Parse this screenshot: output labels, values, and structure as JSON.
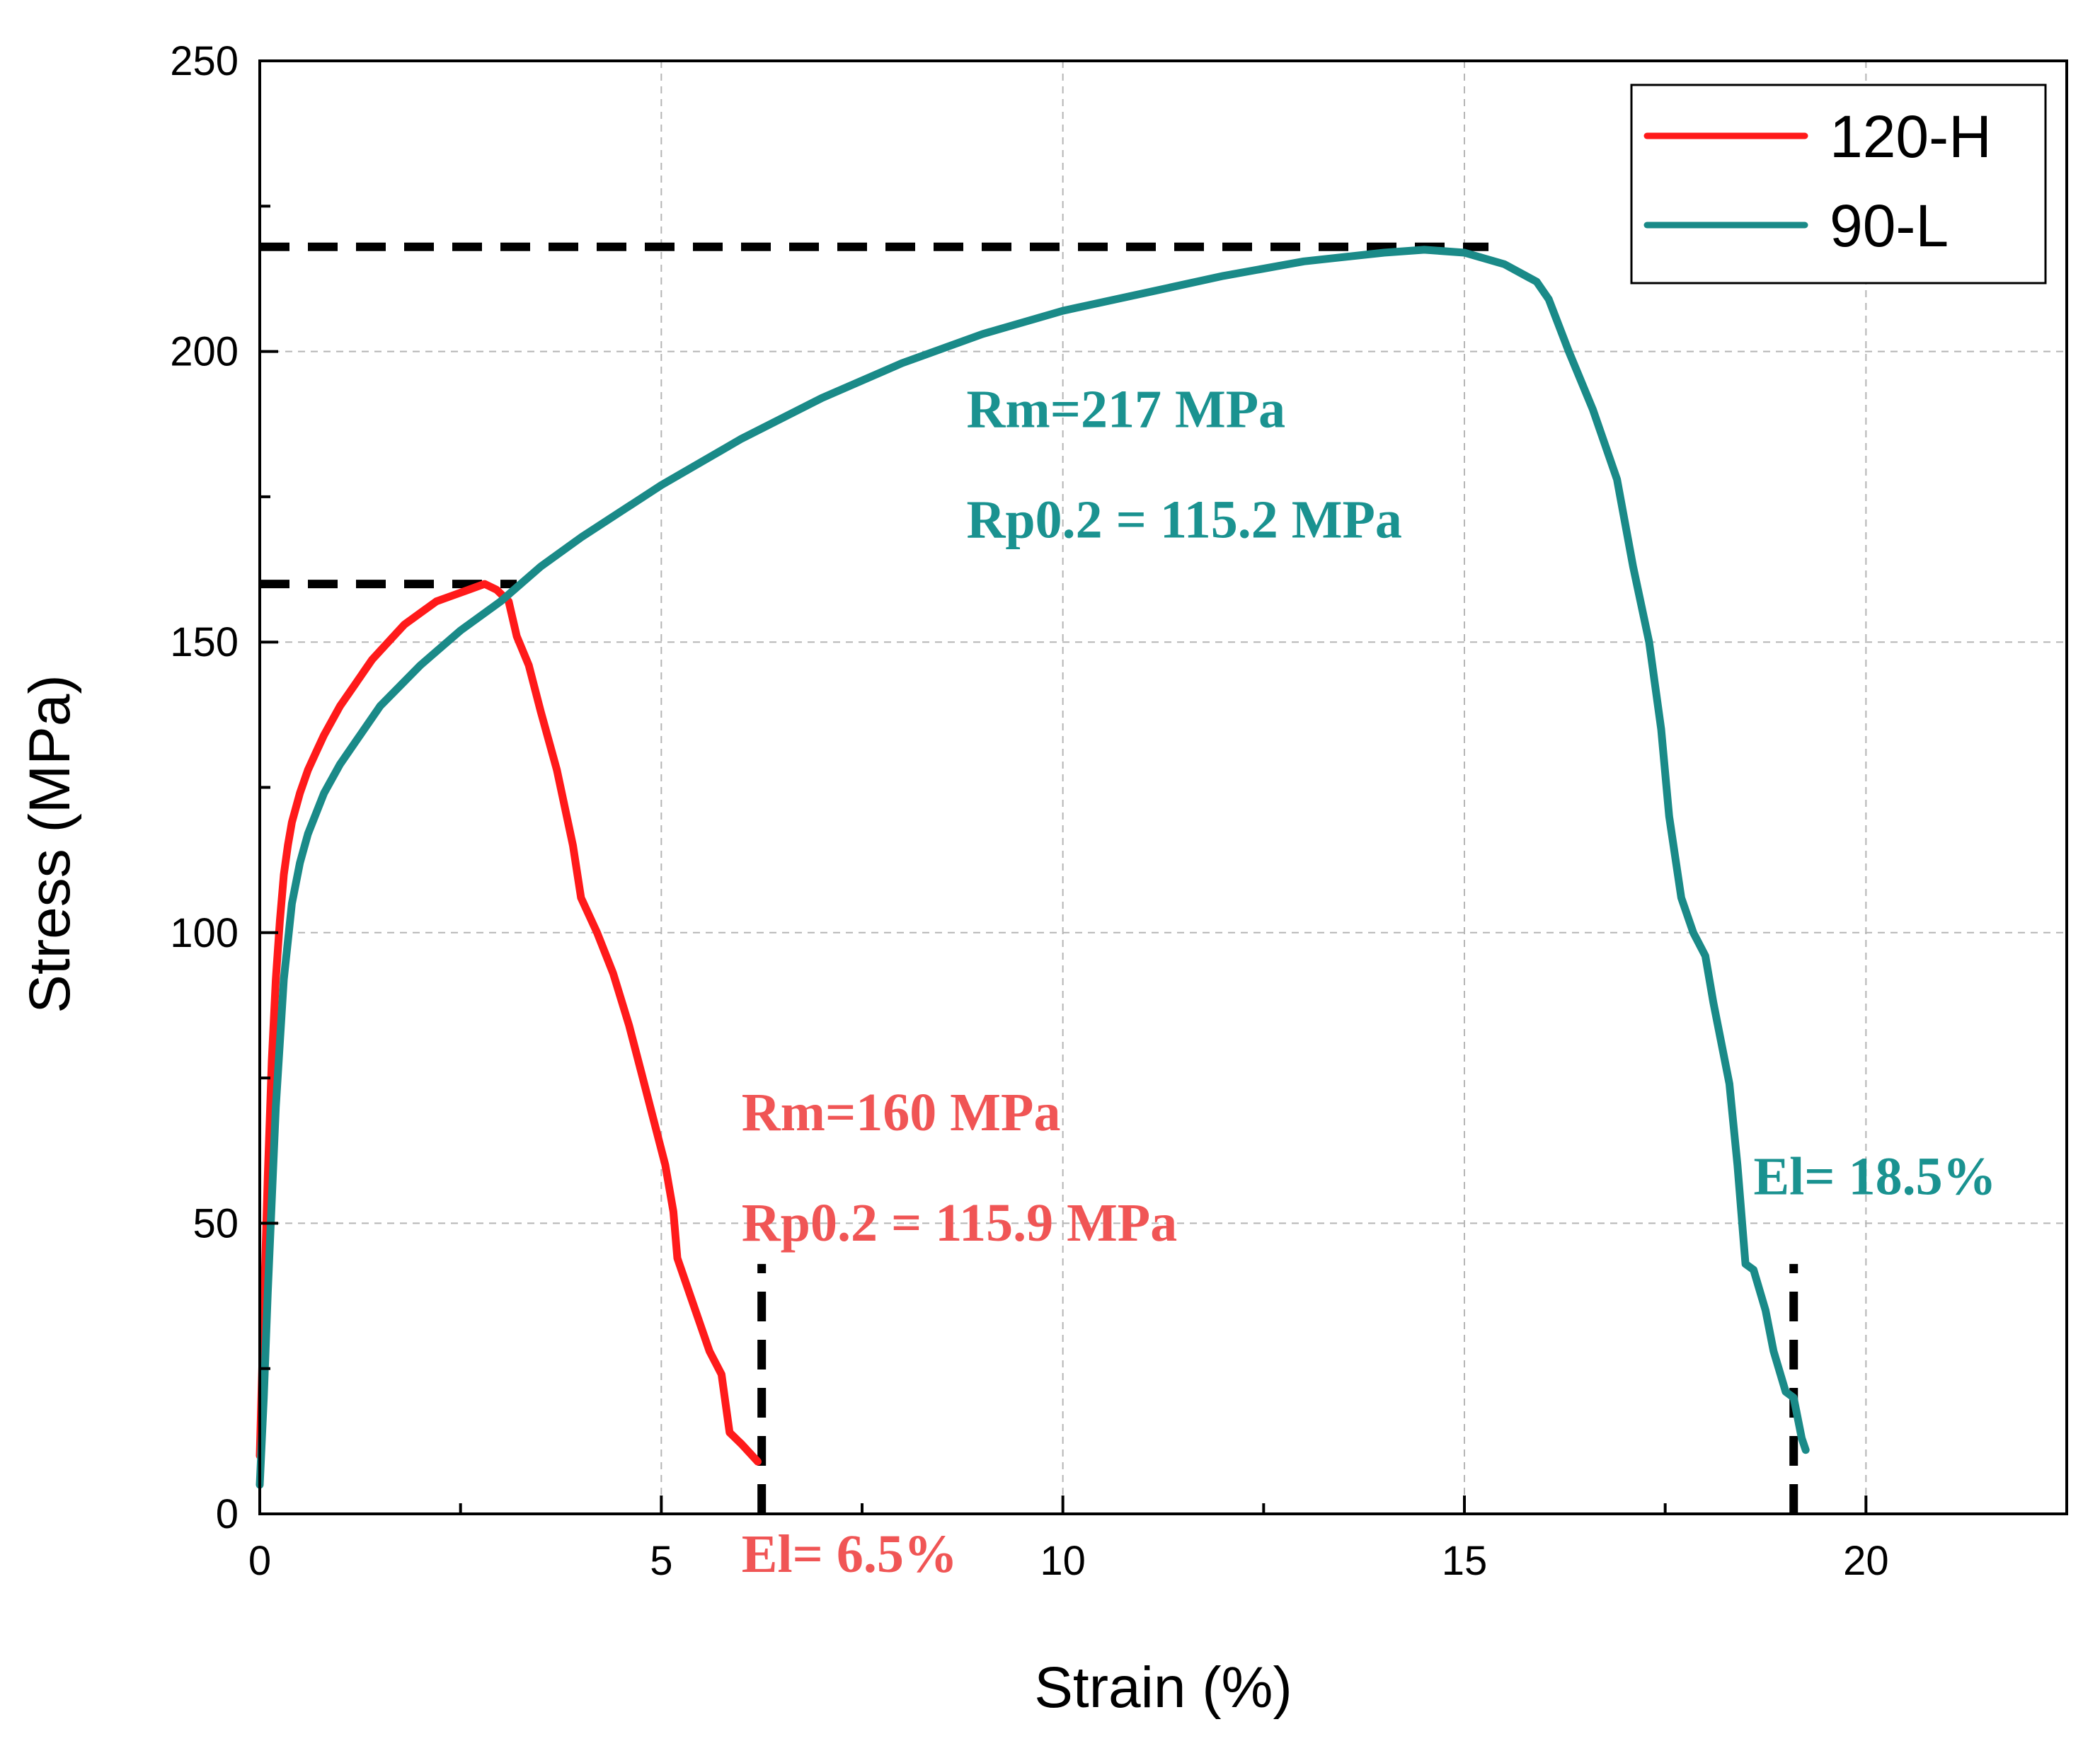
{
  "chart_data": {
    "type": "line",
    "xlabel": "Strain (%)",
    "ylabel": "Stress (MPa)",
    "xlim": [
      0,
      22.5
    ],
    "ylim": [
      0,
      250
    ],
    "xticks": [
      0,
      5,
      10,
      15,
      20
    ],
    "yticks": [
      0,
      50,
      100,
      150,
      200,
      250
    ],
    "grid": true,
    "legend_position": "top-right",
    "colors": {
      "120-H": "#ff1a1a",
      "90-L": "#1a8a88",
      "annot_120H": "#f05555",
      "annot_90L": "#1a9290"
    },
    "series": [
      {
        "name": "120-H",
        "x": [
          0,
          0.05,
          0.1,
          0.15,
          0.2,
          0.25,
          0.3,
          0.35,
          0.4,
          0.5,
          0.6,
          0.7,
          0.8,
          1.0,
          1.2,
          1.4,
          1.6,
          1.8,
          2.0,
          2.2,
          2.4,
          2.6,
          2.8,
          2.95,
          3.1,
          3.2,
          3.35,
          3.5,
          3.7,
          3.9,
          4.0,
          4.2,
          4.4,
          4.6,
          4.75,
          4.9,
          5.05,
          5.15,
          5.2,
          5.4,
          5.6,
          5.75,
          5.85,
          6.0,
          6.2
        ],
        "y": [
          10,
          35,
          58,
          78,
          92,
          102,
          110,
          115,
          119,
          124,
          128,
          131,
          134,
          139,
          143,
          147,
          150,
          153,
          155,
          157,
          158,
          159,
          160,
          159,
          157,
          151,
          146,
          138,
          128,
          115,
          106,
          100,
          93,
          84,
          76,
          68,
          60,
          52,
          44,
          36,
          28,
          24,
          14,
          12,
          9
        ]
      },
      {
        "name": "90-L",
        "x": [
          0,
          0.05,
          0.1,
          0.2,
          0.3,
          0.4,
          0.5,
          0.6,
          0.8,
          1.0,
          1.2,
          1.5,
          2.0,
          2.5,
          3.0,
          3.5,
          4.0,
          5.0,
          6.0,
          7.0,
          8.0,
          9.0,
          10.0,
          11.0,
          12.0,
          13.0,
          14.0,
          14.5,
          15.0,
          15.5,
          15.9,
          16.05,
          16.3,
          16.6,
          16.9,
          17.1,
          17.3,
          17.45,
          17.55,
          17.7,
          17.85,
          18.0,
          18.1,
          18.3,
          18.4,
          18.5,
          18.6,
          18.75,
          18.85,
          19.0,
          19.1,
          19.2,
          19.25
        ],
        "y": [
          5,
          20,
          38,
          70,
          92,
          105,
          112,
          117,
          124,
          129,
          133,
          139,
          146,
          152,
          157,
          163,
          168,
          177,
          185,
          192,
          198,
          203,
          207,
          210,
          213,
          215.5,
          217,
          217.5,
          217,
          215,
          212,
          209,
          200,
          190,
          178,
          163,
          150,
          135,
          120,
          106,
          100,
          96,
          88,
          74,
          60,
          43,
          42,
          35,
          28,
          21,
          20,
          13,
          11
        ]
      }
    ],
    "annotations": [
      {
        "series": "90-L",
        "text": "Rm=217 MPa",
        "x": 8.8,
        "y": 187
      },
      {
        "series": "90-L",
        "text": "Rp0.2 = 115.2 MPa",
        "x": 8.8,
        "y": 168
      },
      {
        "series": "120-H",
        "text": "Rm=160 MPa",
        "x": 6.0,
        "y": 66
      },
      {
        "series": "120-H",
        "text": "Rp0.2 = 115.9 MPa",
        "x": 6.0,
        "y": 47
      },
      {
        "series": "120-H",
        "text": "El= 6.5%",
        "x": 6.0,
        "y": -10
      },
      {
        "series": "90-L",
        "text": "El= 18.5%",
        "x": 18.6,
        "y": 55
      }
    ],
    "reference_lines": [
      {
        "type": "h",
        "y": 218,
        "x_from": 0,
        "x_to": 15.3
      },
      {
        "type": "h",
        "y": 160,
        "x_from": 0,
        "x_to": 3.2
      },
      {
        "type": "v",
        "x": 6.25,
        "y_from": 0,
        "y_to": 43
      },
      {
        "type": "v",
        "x": 19.1,
        "y_from": 0,
        "y_to": 43
      }
    ]
  }
}
